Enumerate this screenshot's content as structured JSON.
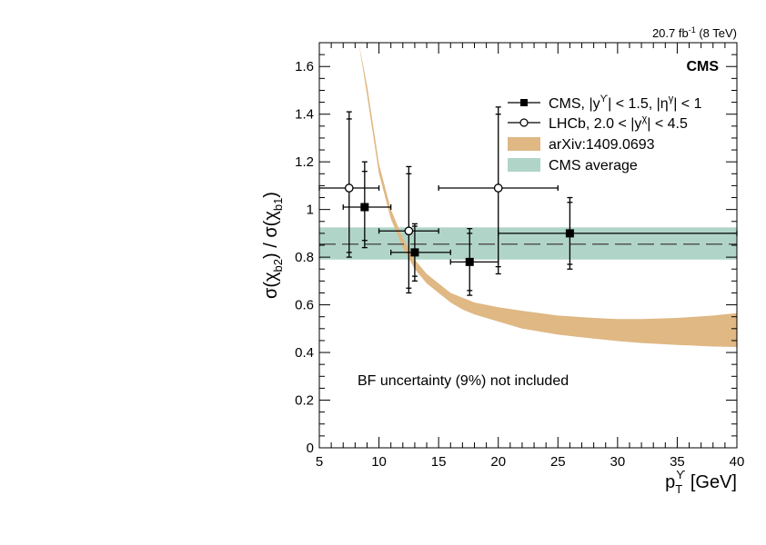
{
  "header": {
    "lumi_value": "20.7 fb",
    "lumi_exp": "-1",
    "energy": " (8 TeV)",
    "experiment": "CMS"
  },
  "annotation": "BF uncertainty (9%) not included",
  "y_axis": {
    "label_main": "σ(χ",
    "label_sub2": "b2",
    "label_mid": ") / σ(χ",
    "label_sub1": "b1",
    "label_end": ")"
  },
  "x_axis": {
    "label_main": "p",
    "label_sub": "T",
    "label_sup": "ϒ",
    "label_unit": " [GeV]"
  },
  "legend": {
    "cms": {
      "p1": "CMS, |y",
      "s1": "ϒ",
      "p2": "| < 1.5, |η",
      "s2": "γ",
      "p3": "| < 1"
    },
    "lhcb": {
      "p1": "LHCb, 2.0 < |y",
      "s1": "χ",
      "p2": "| < 4.5"
    },
    "theory": "arXiv:1409.0693",
    "average": "CMS average"
  },
  "colors": {
    "theory_band": "#dfb884",
    "average_band": "#b0d5c8",
    "average_line": "#555555",
    "markers": "#000000"
  },
  "chart_data": {
    "type": "scatter",
    "xlim": [
      5,
      40
    ],
    "ylim": [
      0,
      1.7
    ],
    "x_ticks": [
      "5",
      "10",
      "15",
      "20",
      "25",
      "30",
      "35",
      "40"
    ],
    "y_ticks": [
      "0",
      "0.2",
      "0.4",
      "0.6",
      "0.8",
      "1",
      "1.2",
      "1.4",
      "1.6"
    ],
    "series": [
      {
        "name": "CMS",
        "marker": "filled-square",
        "points": [
          {
            "x": 8.8,
            "y": 1.01,
            "xlo": 7.0,
            "xhi": 11.0,
            "ylo_stat": 0.87,
            "yhi_stat": 1.16,
            "ylo_tot": 0.84,
            "yhi_tot": 1.2
          },
          {
            "x": 13.0,
            "y": 0.82,
            "xlo": 11.0,
            "xhi": 16.0,
            "ylo_stat": 0.72,
            "yhi_stat": 0.93,
            "ylo_tot": 0.7,
            "yhi_tot": 0.94
          },
          {
            "x": 17.6,
            "y": 0.78,
            "xlo": 16.0,
            "xhi": 20.0,
            "ylo_stat": 0.66,
            "yhi_stat": 0.9,
            "ylo_tot": 0.64,
            "yhi_tot": 0.92
          },
          {
            "x": 26.0,
            "y": 0.9,
            "xlo": 20.0,
            "xhi": 40.0,
            "ylo_stat": 0.77,
            "yhi_stat": 1.03,
            "ylo_tot": 0.75,
            "yhi_tot": 1.05
          }
        ]
      },
      {
        "name": "LHCb",
        "marker": "open-circle",
        "points": [
          {
            "x": 7.5,
            "y": 1.09,
            "xlo": 5.0,
            "xhi": 10.0,
            "ylo_stat": 0.82,
            "yhi_stat": 1.38,
            "ylo_tot": 0.8,
            "yhi_tot": 1.41
          },
          {
            "x": 12.5,
            "y": 0.91,
            "xlo": 10.0,
            "xhi": 15.0,
            "ylo_stat": 0.67,
            "yhi_stat": 1.15,
            "ylo_tot": 0.65,
            "yhi_tot": 1.18
          },
          {
            "x": 20.0,
            "y": 1.09,
            "xlo": 15.0,
            "xhi": 25.0,
            "ylo_stat": 0.76,
            "yhi_stat": 1.4,
            "ylo_tot": 0.73,
            "yhi_tot": 1.43
          }
        ]
      }
    ],
    "theory_band": {
      "name": "arXiv:1409.0693",
      "x": [
        8.3,
        9,
        10,
        11,
        12,
        13,
        14,
        15,
        16,
        17,
        18,
        20,
        22,
        25,
        28,
        30,
        32,
        35,
        38,
        40
      ],
      "lower": [
        1.7,
        1.48,
        1.15,
        0.96,
        0.84,
        0.75,
        0.69,
        0.65,
        0.61,
        0.58,
        0.56,
        0.53,
        0.5,
        0.475,
        0.458,
        0.448,
        0.44,
        0.432,
        0.425,
        0.423
      ],
      "upper": [
        1.7,
        1.52,
        1.19,
        1.0,
        0.88,
        0.79,
        0.73,
        0.69,
        0.65,
        0.63,
        0.61,
        0.59,
        0.575,
        0.555,
        0.545,
        0.54,
        0.54,
        0.545,
        0.555,
        0.565
      ]
    },
    "average": {
      "name": "CMS average",
      "value": 0.855,
      "band_low": 0.79,
      "band_high": 0.925
    }
  }
}
